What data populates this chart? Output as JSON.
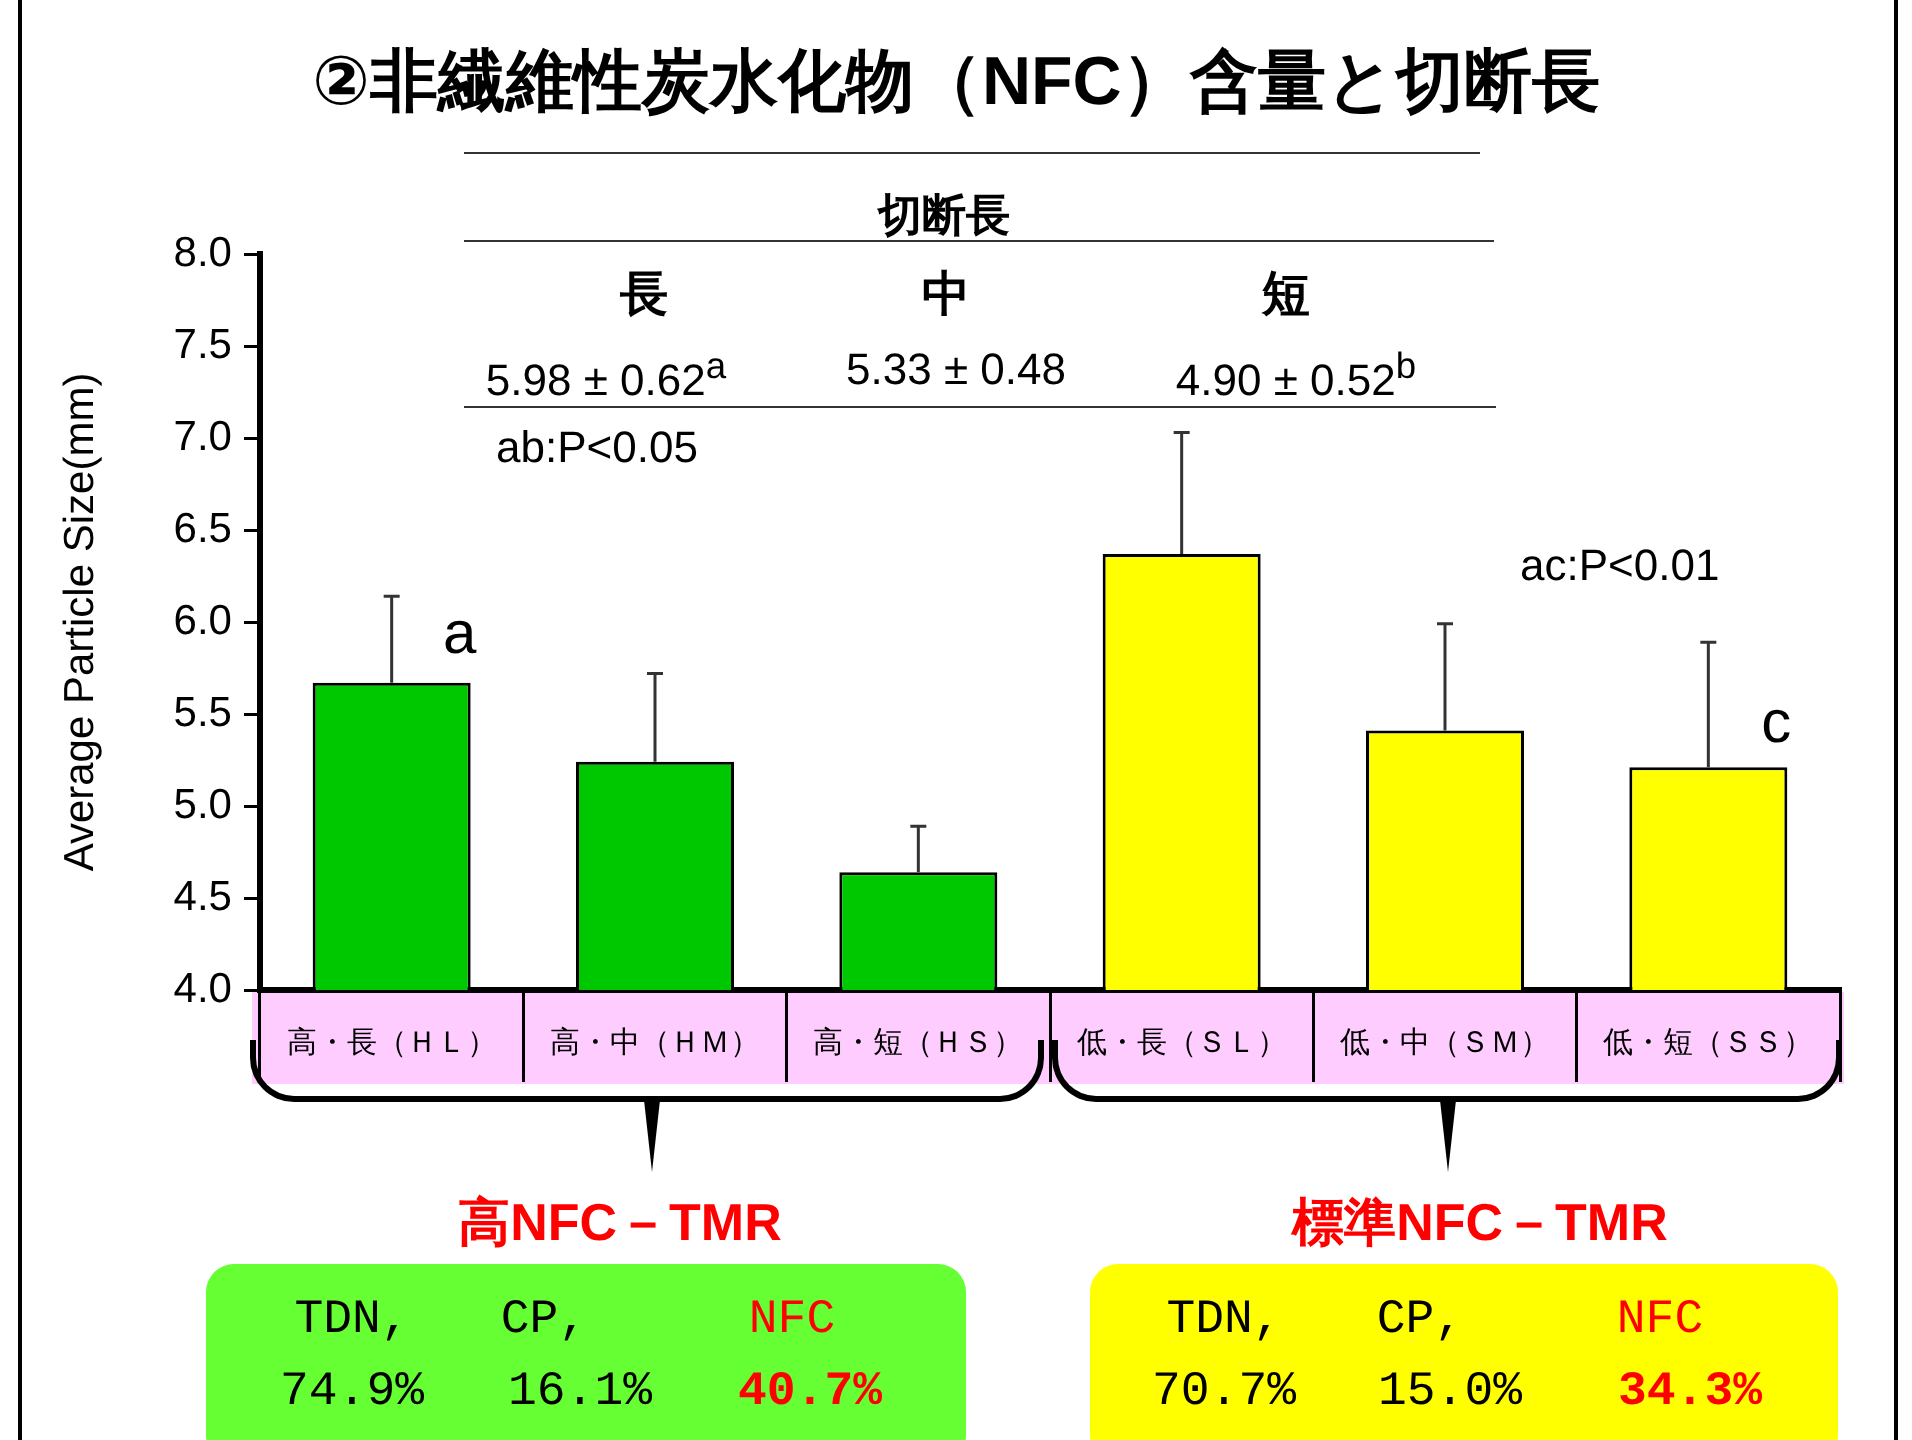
{
  "chart_data": {
    "type": "bar",
    "title": "②非繊維性炭水化物（NFC）含量と切断長",
    "ylabel": "Average Particle Size(mm)",
    "categories": [
      "高・長（ＨＬ）",
      "高・中（ＨＭ）",
      "高・短（ＨＳ）",
      "低・長（ＳＬ）",
      "低・中（ＳＭ）",
      "低・短（ＳＳ）"
    ],
    "series": [
      {
        "colors": [
          "#00c800",
          "#00c800",
          "#00c800",
          "#ffff00",
          "#ffff00",
          "#ffff00"
        ],
        "values": [
          5.67,
          5.24,
          4.64,
          6.37,
          5.41,
          5.21
        ],
        "errors": [
          [
            5.67,
            6.14
          ],
          [
            5.24,
            5.72
          ],
          [
            4.64,
            4.89
          ],
          [
            6.37,
            7.03
          ],
          [
            5.41,
            5.99
          ],
          [
            5.21,
            5.89
          ]
        ]
      }
    ],
    "ylim": [
      4.0,
      8.0
    ],
    "yticks": [
      {
        "value": 4,
        "label": "4.0"
      },
      4.5,
      {
        "value": 5,
        "label": "5.0"
      },
      5.5,
      {
        "value": 6,
        "label": "6.0"
      },
      6.5,
      {
        "value": 7,
        "label": "7.0"
      },
      7.5,
      {
        "value": 8,
        "label": "8.0"
      }
    ],
    "grid": false,
    "legend": false,
    "annotations": [
      "切断長",
      "長",
      "中",
      "短",
      "5.98 ± 0.62$^{a}$",
      "5.33 ± 0.48",
      "4.90 ± 0.52$^{b}$",
      "ab:P<0.05",
      "ac:P<0.01",
      {
        "text": "a",
        "x": "高・長（ＨＬ）",
        "y": 5.92
      },
      {
        "text": "c",
        "x": "低・短（ＳＳ）",
        "y": 5.44
      },
      "高NFC－TMR",
      "標準NFC－TMR",
      "TDN,",
      "CP,",
      "NFC",
      "74.9%",
      "16.1%",
      "40.7%",
      "TDN,",
      "CP,",
      "NFC",
      "70.7%",
      "15.0%",
      "34.3%"
    ]
  }
}
